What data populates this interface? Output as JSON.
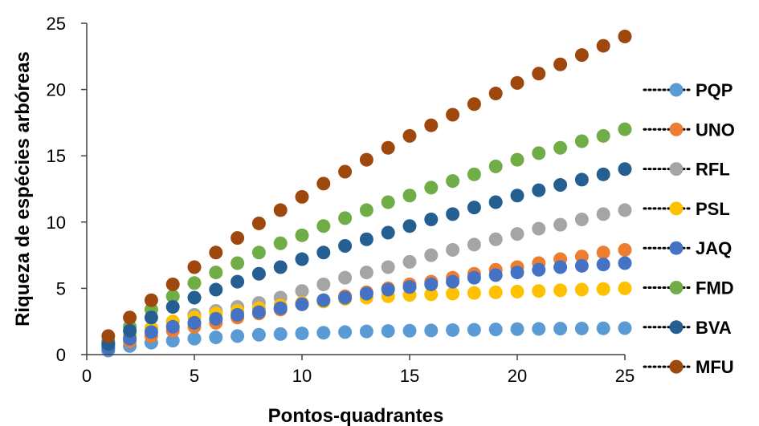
{
  "chart_data": {
    "type": "scatter",
    "xlabel": "Pontos-quadrantes",
    "ylabel": "Riqueza de espécies arbóreas",
    "xlim": [
      0,
      25
    ],
    "ylim": [
      0,
      25
    ],
    "xticks": [
      0,
      5,
      10,
      15,
      20,
      25
    ],
    "yticks": [
      0,
      5,
      10,
      15,
      20,
      25
    ],
    "grid": false,
    "legend_position": "right",
    "x": [
      1,
      2,
      3,
      4,
      5,
      6,
      7,
      8,
      9,
      10,
      11,
      12,
      13,
      14,
      15,
      16,
      17,
      18,
      19,
      20,
      21,
      22,
      23,
      24,
      25
    ],
    "series": [
      {
        "name": "PQP",
        "color": "#5B9BD5",
        "values": [
          0.3,
          0.65,
          0.9,
          1.05,
          1.2,
          1.3,
          1.4,
          1.5,
          1.55,
          1.6,
          1.65,
          1.7,
          1.75,
          1.78,
          1.8,
          1.82,
          1.85,
          1.87,
          1.9,
          1.92,
          1.94,
          1.96,
          1.97,
          1.98,
          2.0
        ]
      },
      {
        "name": "UNO",
        "color": "#ED7D31",
        "values": [
          0.6,
          1.0,
          1.4,
          1.8,
          2.1,
          2.4,
          2.8,
          3.1,
          3.4,
          3.8,
          4.1,
          4.4,
          4.7,
          5.0,
          5.3,
          5.5,
          5.8,
          6.1,
          6.4,
          6.6,
          6.9,
          7.2,
          7.4,
          7.7,
          7.9
        ]
      },
      {
        "name": "RFL",
        "color": "#A5A5A5",
        "values": [
          0.8,
          1.4,
          2.0,
          2.5,
          3.0,
          3.3,
          3.6,
          3.9,
          4.3,
          4.8,
          5.3,
          5.8,
          6.2,
          6.6,
          7.0,
          7.5,
          7.9,
          8.3,
          8.7,
          9.1,
          9.5,
          9.8,
          10.2,
          10.6,
          10.9
        ]
      },
      {
        "name": "PSL",
        "color": "#FFC000",
        "values": [
          0.7,
          1.5,
          2.0,
          2.5,
          2.8,
          3.1,
          3.3,
          3.5,
          3.7,
          3.9,
          4.0,
          4.2,
          4.3,
          4.4,
          4.5,
          4.55,
          4.6,
          4.65,
          4.7,
          4.75,
          4.8,
          4.85,
          4.9,
          4.95,
          5.0
        ]
      },
      {
        "name": "JAQ",
        "color": "#4472C4",
        "values": [
          0.5,
          1.2,
          1.7,
          2.1,
          2.4,
          2.7,
          3.0,
          3.2,
          3.5,
          3.8,
          4.1,
          4.3,
          4.6,
          4.9,
          5.1,
          5.3,
          5.5,
          5.8,
          6.0,
          6.2,
          6.4,
          6.6,
          6.7,
          6.8,
          6.9
        ]
      },
      {
        "name": "FMD",
        "color": "#70AD47",
        "values": [
          1.0,
          2.1,
          3.4,
          4.4,
          5.4,
          6.2,
          6.9,
          7.7,
          8.4,
          9.0,
          9.7,
          10.3,
          10.9,
          11.5,
          12.0,
          12.6,
          13.1,
          13.6,
          14.2,
          14.7,
          15.2,
          15.6,
          16.1,
          16.5,
          17.0
        ]
      },
      {
        "name": "BVA",
        "color": "#255E91",
        "values": [
          0.8,
          1.8,
          2.8,
          3.6,
          4.3,
          4.9,
          5.5,
          6.1,
          6.6,
          7.2,
          7.7,
          8.2,
          8.7,
          9.2,
          9.7,
          10.2,
          10.6,
          11.1,
          11.5,
          12.0,
          12.4,
          12.8,
          13.2,
          13.6,
          14.0
        ]
      },
      {
        "name": "MFU",
        "color": "#9E480E",
        "values": [
          1.4,
          2.8,
          4.1,
          5.3,
          6.6,
          7.7,
          8.8,
          9.9,
          10.9,
          11.9,
          12.9,
          13.8,
          14.7,
          15.6,
          16.5,
          17.3,
          18.1,
          18.9,
          19.7,
          20.5,
          21.2,
          21.9,
          22.6,
          23.3,
          24.0
        ]
      }
    ]
  }
}
